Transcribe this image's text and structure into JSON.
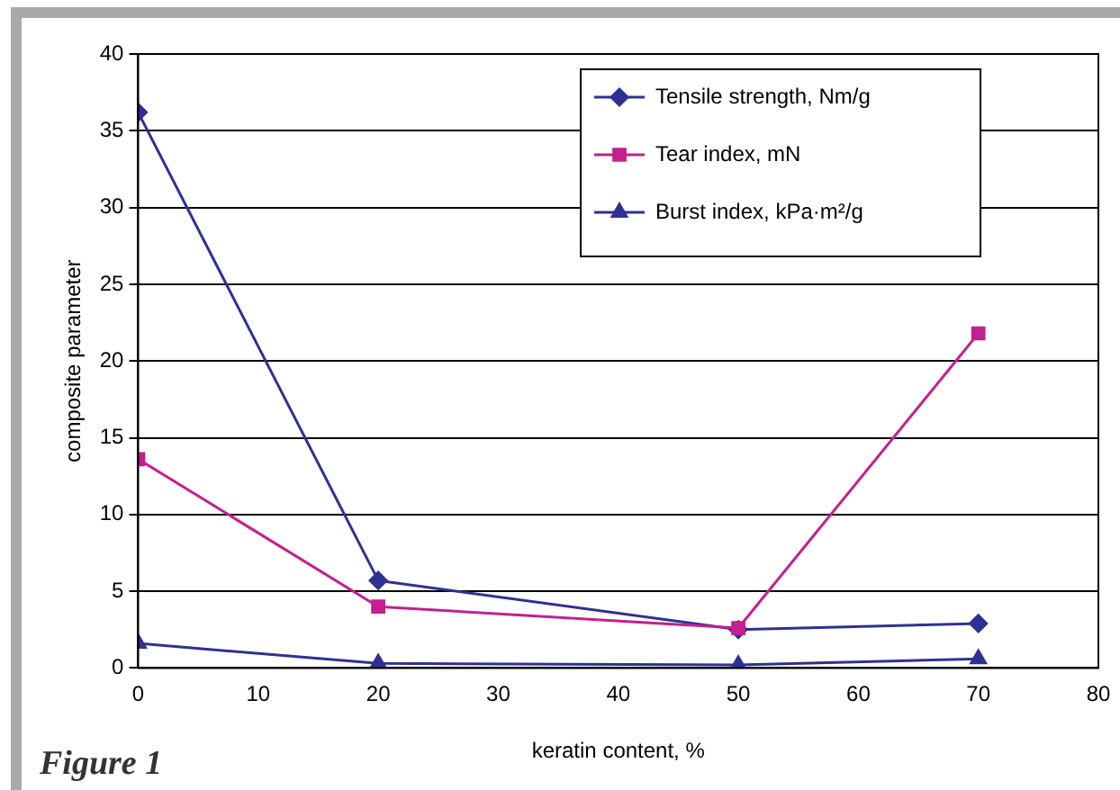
{
  "chart_data": {
    "type": "line",
    "xlabel": "keratin content, %",
    "ylabel": "composite parameter",
    "annotations": [
      "Figure 1"
    ],
    "x": [
      0,
      20,
      50,
      70
    ],
    "xlim": [
      0,
      80
    ],
    "xticks": [
      0,
      10,
      20,
      30,
      40,
      50,
      60,
      70,
      80
    ],
    "ylim": [
      0,
      40
    ],
    "yticks": [
      0,
      5,
      10,
      15,
      20,
      25,
      30,
      35,
      40
    ],
    "grid": "y",
    "legend": "top right",
    "series": [
      {
        "name": "Tensile strength, Nm/g",
        "color": "#2e3192",
        "marker": "diamond",
        "values": [
          36.2,
          5.7,
          2.5,
          2.9
        ]
      },
      {
        "name": "Tear index, mN",
        "color": "#c4208e",
        "marker": "square",
        "values": [
          13.6,
          4.0,
          2.6,
          21.8
        ]
      },
      {
        "name": "Burst index, kPa·m²/g",
        "color": "#2e3192",
        "marker": "triangle",
        "values": [
          1.6,
          0.3,
          0.2,
          0.6
        ]
      }
    ]
  }
}
